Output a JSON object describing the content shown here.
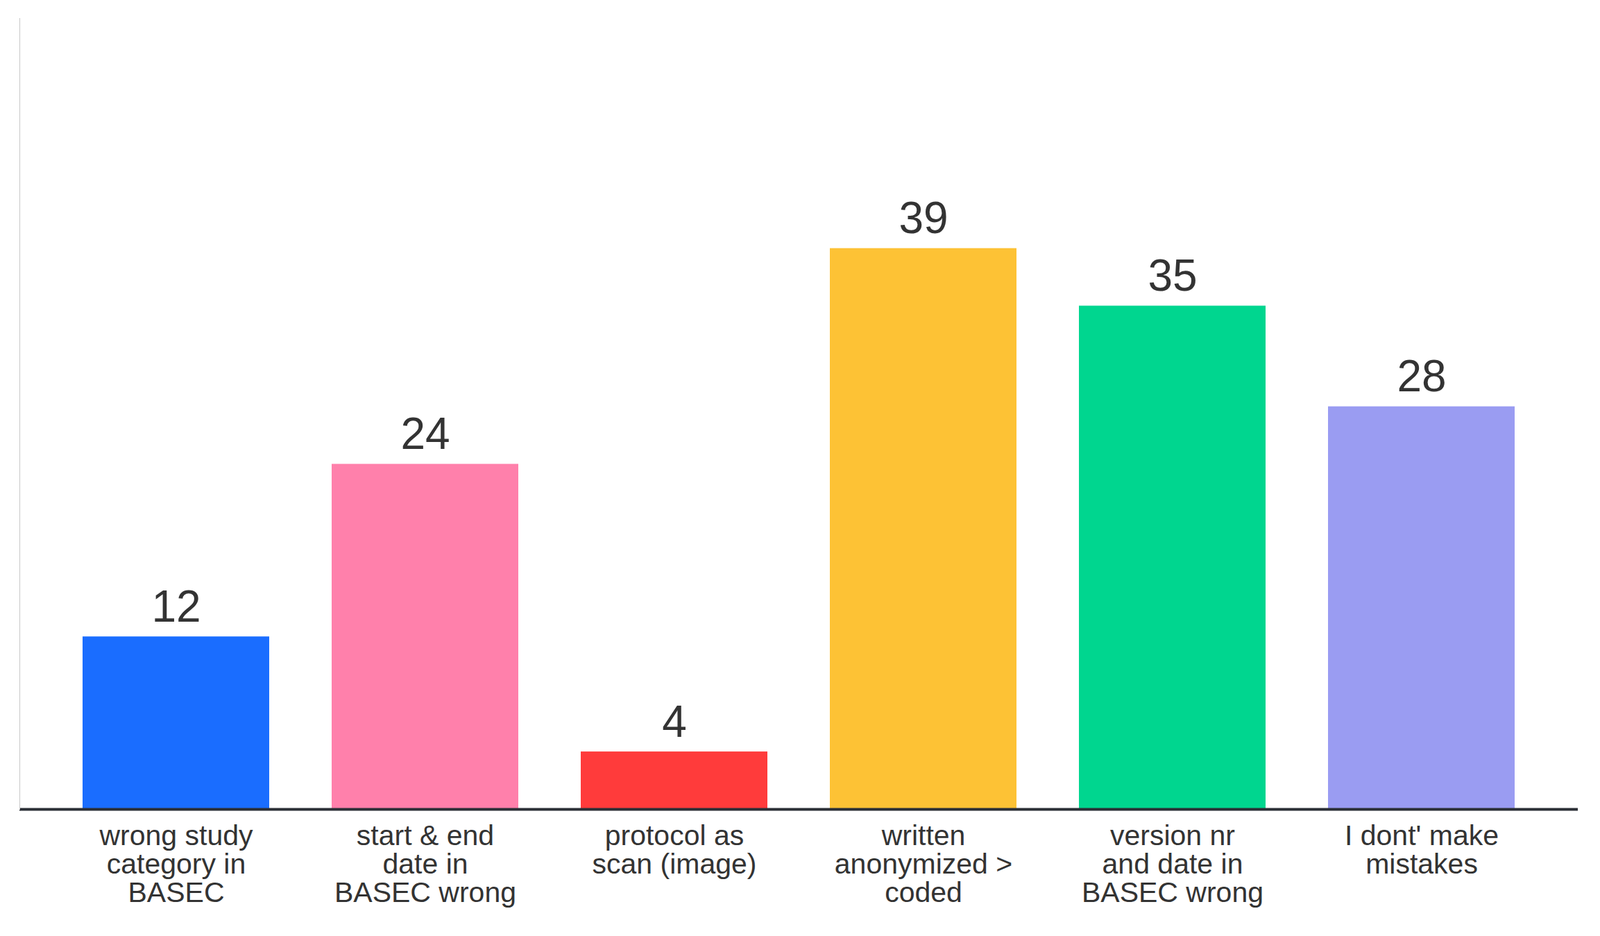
{
  "chart_data": {
    "type": "bar",
    "categories": [
      "wrong study category in BASEC",
      "start & end date in BASEC wrong",
      "protocol as scan (image)",
      "written anonymized > coded",
      "version nr and date in BASEC wrong",
      "I dont' make mistakes"
    ],
    "values": [
      12,
      24,
      4,
      39,
      35,
      28
    ],
    "colors": [
      "#1a6dff",
      "#ff80ab",
      "#ff3b3b",
      "#fdc235",
      "#00d68f",
      "#9a9cf2"
    ],
    "ylim": [
      0,
      55
    ],
    "yticks": [],
    "tick_labels": "x",
    "data_labels": true,
    "grid": false
  }
}
